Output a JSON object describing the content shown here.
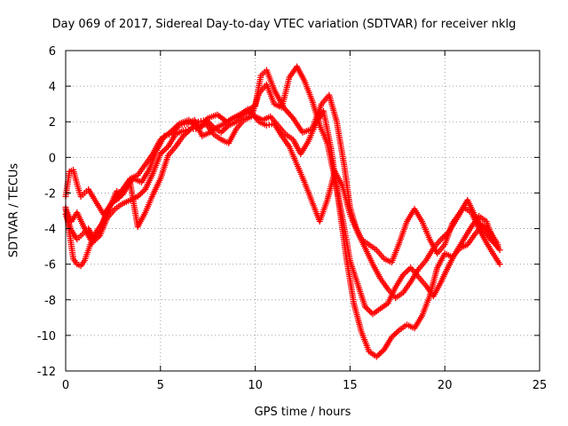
{
  "chart_data": {
    "type": "scatter",
    "title": "Day 069 of 2017, Sidereal Day-to-day VTEC variation (SDTVAR) for receiver nklg",
    "xlabel": "GPS time / hours",
    "ylabel": "SDTVAR / TECUs",
    "xlim": [
      0,
      25
    ],
    "ylim": [
      -12,
      6
    ],
    "xticks": [
      "0",
      "5",
      "10",
      "15",
      "20",
      "25"
    ],
    "yticks": [
      "-12",
      "-10",
      "-8",
      "-6",
      "-4",
      "-2",
      "0",
      "2",
      "4",
      "6"
    ],
    "grid": true,
    "marker": "+",
    "series_color": "#ff0000",
    "series": [
      {
        "x": [
          0.0,
          0.2,
          0.4,
          0.6,
          0.8,
          1.0,
          1.2,
          1.6,
          2.0,
          2.5,
          3.0,
          3.4,
          3.8,
          4.2,
          4.6,
          5.0,
          5.5,
          6.0,
          6.5,
          7.0,
          7.5,
          8.0,
          8.5,
          9.0,
          9.5,
          10.0,
          10.3,
          10.6,
          11.0,
          11.5,
          12.0,
          12.5,
          13.0,
          13.5,
          13.9,
          14.3,
          14.7,
          15.0,
          15.3,
          15.6,
          16.0,
          16.4,
          16.8,
          17.2,
          17.6,
          18.0,
          18.4,
          18.8,
          19.2,
          19.6,
          20.0,
          20.4,
          20.8,
          21.2,
          21.6,
          22.0,
          22.4,
          22.8
        ],
        "y": [
          -2.2,
          -0.8,
          -0.7,
          -1.5,
          -2.2,
          -2.0,
          -1.8,
          -2.5,
          -3.2,
          -2.5,
          -1.8,
          -1.2,
          -1.0,
          -0.4,
          0.2,
          1.0,
          1.4,
          1.9,
          2.1,
          1.6,
          2.2,
          2.4,
          2.0,
          2.3,
          2.6,
          2.9,
          4.6,
          4.9,
          3.8,
          2.8,
          2.2,
          1.4,
          1.6,
          3.0,
          3.5,
          2.0,
          -0.5,
          -2.8,
          -3.9,
          -4.6,
          -4.9,
          -5.2,
          -5.7,
          -5.9,
          -4.8,
          -3.6,
          -2.9,
          -3.6,
          -4.6,
          -5.4,
          -4.9,
          -3.7,
          -3.1,
          -2.4,
          -3.3,
          -4.0,
          -4.6,
          -5.0
        ]
      },
      {
        "x": [
          0.0,
          0.2,
          0.4,
          0.6,
          0.8,
          1.0,
          1.3,
          1.6,
          2.0,
          2.4,
          2.8,
          3.2,
          3.6,
          4.0,
          4.4,
          4.8,
          5.2,
          5.6,
          6.0,
          6.4,
          6.8,
          7.2,
          7.6,
          8.0,
          8.4,
          8.8,
          9.2,
          9.6,
          10.0,
          10.4,
          10.8,
          11.2,
          11.6,
          12.0,
          12.4,
          12.8,
          13.2,
          13.6,
          14.0,
          14.4,
          14.8,
          15.2,
          15.6,
          16.0,
          16.4,
          16.8,
          17.2,
          17.6,
          18.0,
          18.4,
          18.8,
          19.2,
          19.6,
          20.0,
          20.4,
          20.8,
          21.2,
          21.6,
          22.0,
          22.4,
          22.8
        ],
        "y": [
          -2.8,
          -4.2,
          -5.7,
          -6.0,
          -6.1,
          -5.8,
          -4.9,
          -4.2,
          -3.6,
          -2.6,
          -2.3,
          -1.6,
          -1.2,
          -1.4,
          -0.7,
          0.4,
          1.2,
          1.3,
          1.8,
          1.9,
          2.1,
          1.2,
          1.4,
          1.7,
          1.9,
          2.2,
          2.4,
          2.7,
          2.3,
          2.1,
          2.3,
          1.8,
          1.3,
          1.0,
          0.2,
          0.9,
          1.9,
          2.6,
          0.5,
          -2.5,
          -5.6,
          -8.2,
          -9.8,
          -10.9,
          -11.2,
          -10.8,
          -10.1,
          -9.7,
          -9.4,
          -9.6,
          -8.9,
          -7.8,
          -6.2,
          -5.4,
          -5.6,
          -5.1,
          -4.9,
          -4.3,
          -3.8,
          -4.2,
          -4.9
        ]
      },
      {
        "x": [
          0.0,
          0.3,
          0.6,
          1.0,
          1.4,
          1.8,
          2.2,
          2.6,
          3.0,
          3.4,
          3.8,
          4.2,
          4.6,
          5.0,
          5.4,
          5.8,
          6.2,
          6.6,
          7.0,
          7.4,
          7.8,
          8.2,
          8.6,
          9.0,
          9.4,
          9.8,
          10.2,
          10.6,
          11.0,
          11.4,
          11.8,
          12.2,
          12.6,
          13.0,
          13.4,
          13.8,
          14.2,
          14.6,
          15.0,
          15.4,
          15.8,
          16.2,
          16.6,
          17.0,
          17.4,
          17.8,
          18.2,
          18.6,
          19.0,
          19.4,
          19.8,
          20.2,
          20.6,
          21.0,
          21.4,
          21.8,
          22.2,
          22.6,
          22.9
        ],
        "y": [
          -2.9,
          -3.6,
          -3.1,
          -4.0,
          -4.8,
          -4.4,
          -3.4,
          -2.9,
          -2.6,
          -2.4,
          -2.2,
          -1.8,
          -0.9,
          0.2,
          0.6,
          1.3,
          1.5,
          1.6,
          1.6,
          1.9,
          1.3,
          1.0,
          0.8,
          1.6,
          2.1,
          2.3,
          3.6,
          4.1,
          3.0,
          2.8,
          4.5,
          5.1,
          4.3,
          3.2,
          1.8,
          0.8,
          -1.2,
          -3.4,
          -5.8,
          -7.1,
          -8.4,
          -8.8,
          -8.5,
          -8.2,
          -7.3,
          -6.6,
          -6.2,
          -6.7,
          -7.2,
          -7.8,
          -7.0,
          -6.1,
          -5.3,
          -4.6,
          -3.9,
          -3.3,
          -3.6,
          -4.8,
          -5.2
        ]
      },
      {
        "x": [
          0.0,
          0.3,
          0.6,
          0.9,
          1.2,
          1.5,
          1.8,
          2.1,
          2.4,
          2.7,
          3.0,
          3.4,
          3.8,
          4.2,
          4.6,
          5.0,
          5.4,
          5.8,
          6.2,
          6.6,
          7.0,
          7.4,
          7.8,
          8.2,
          8.6,
          9.0,
          9.4,
          9.8,
          10.2,
          10.6,
          11.0,
          11.4,
          11.8,
          12.2,
          12.6,
          13.0,
          13.4,
          13.8,
          14.2,
          14.6,
          15.0,
          15.4,
          15.8,
          16.2,
          16.6,
          17.0,
          17.4,
          17.8,
          18.2,
          18.6,
          19.0,
          19.4,
          19.8,
          20.2,
          20.6,
          21.0,
          21.4,
          21.8,
          22.2,
          22.6,
          22.9
        ],
        "y": [
          -3.2,
          -4.1,
          -4.6,
          -4.3,
          -4.0,
          -4.6,
          -4.1,
          -3.2,
          -2.6,
          -1.9,
          -2.1,
          -1.4,
          -3.9,
          -3.1,
          -2.1,
          -1.2,
          0.1,
          0.6,
          1.2,
          1.6,
          2.0,
          2.1,
          1.7,
          1.4,
          1.8,
          2.0,
          2.4,
          2.5,
          2.0,
          1.8,
          1.9,
          1.2,
          0.6,
          -0.4,
          -1.4,
          -2.5,
          -3.6,
          -2.4,
          -0.8,
          -1.6,
          -3.2,
          -4.2,
          -5.1,
          -6.0,
          -6.8,
          -7.4,
          -7.9,
          -7.6,
          -7.0,
          -6.3,
          -5.8,
          -5.1,
          -4.6,
          -4.2,
          -3.5,
          -2.8,
          -3.1,
          -4.0,
          -4.8,
          -5.5,
          -6.0
        ]
      }
    ]
  }
}
